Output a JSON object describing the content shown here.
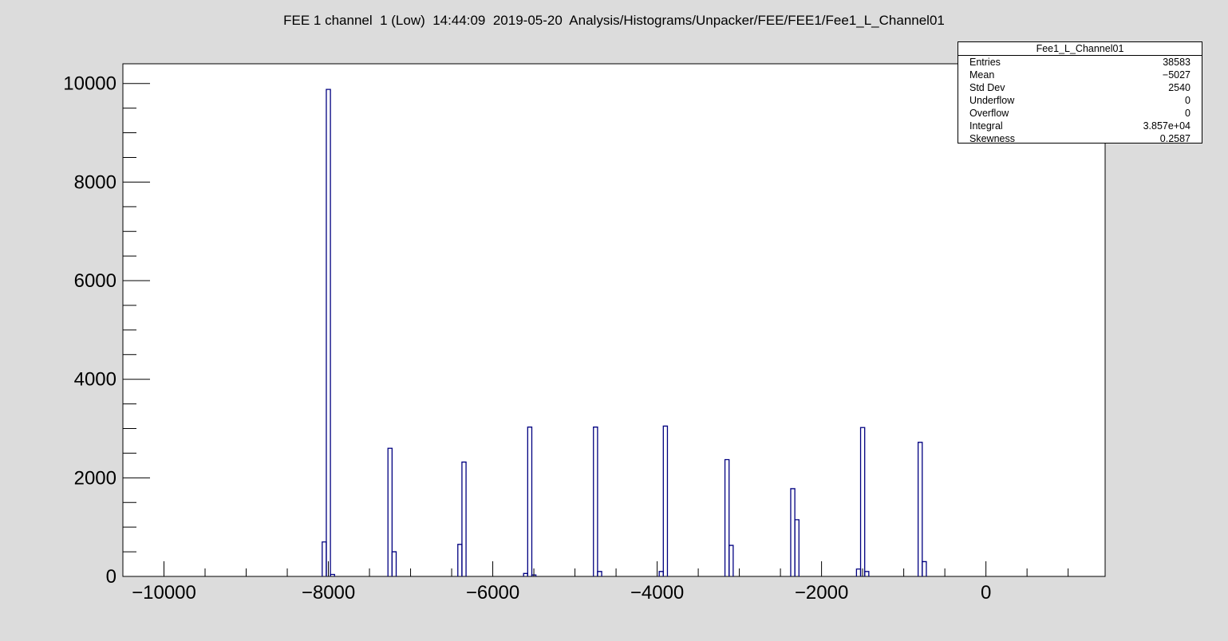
{
  "title": "FEE 1 channel  1 (Low)  14:44:09  2019-05-20  Analysis/Histograms/Unpacker/FEE/FEE1/Fee1_L_Channel01",
  "stats": {
    "name": "Fee1_L_Channel01",
    "rows": [
      {
        "label": "Entries",
        "value": "38583"
      },
      {
        "label": "Mean",
        "value": "−5027"
      },
      {
        "label": "Std Dev",
        "value": "2540"
      },
      {
        "label": "Underflow",
        "value": "0"
      },
      {
        "label": "Overflow",
        "value": "0"
      },
      {
        "label": "Integral",
        "value": "3.857e+04"
      },
      {
        "label": "Skewness",
        "value": "0.2587"
      }
    ]
  },
  "chart_data": {
    "type": "bar",
    "title": "FEE 1 channel  1 (Low)  14:44:09  2019-05-20  Analysis/Histograms/Unpacker/FEE/FEE1/Fee1_L_Channel01",
    "xlim": [
      -10500,
      1450
    ],
    "ylim": [
      0,
      10400
    ],
    "bin_width": 50,
    "xticks": [
      -10000,
      -8000,
      -6000,
      -4000,
      -2000,
      0
    ],
    "yticks": [
      0,
      2000,
      4000,
      6000,
      8000,
      10000
    ],
    "line_color": "#000080",
    "bins": [
      {
        "x": -8050,
        "y": 700
      },
      {
        "x": -8000,
        "y": 9880
      },
      {
        "x": -7950,
        "y": 40
      },
      {
        "x": -7250,
        "y": 2600
      },
      {
        "x": -7200,
        "y": 500
      },
      {
        "x": -6400,
        "y": 650
      },
      {
        "x": -6350,
        "y": 2320
      },
      {
        "x": -5600,
        "y": 60
      },
      {
        "x": -5550,
        "y": 3030
      },
      {
        "x": -5500,
        "y": 30
      },
      {
        "x": -4750,
        "y": 3030
      },
      {
        "x": -4700,
        "y": 100
      },
      {
        "x": -3950,
        "y": 100
      },
      {
        "x": -3900,
        "y": 3050
      },
      {
        "x": -3150,
        "y": 2370
      },
      {
        "x": -3100,
        "y": 630
      },
      {
        "x": -2350,
        "y": 1780
      },
      {
        "x": -2300,
        "y": 1150
      },
      {
        "x": -1550,
        "y": 150
      },
      {
        "x": -1500,
        "y": 3020
      },
      {
        "x": -1450,
        "y": 100
      },
      {
        "x": -800,
        "y": 2720
      },
      {
        "x": -750,
        "y": 300
      }
    ]
  }
}
